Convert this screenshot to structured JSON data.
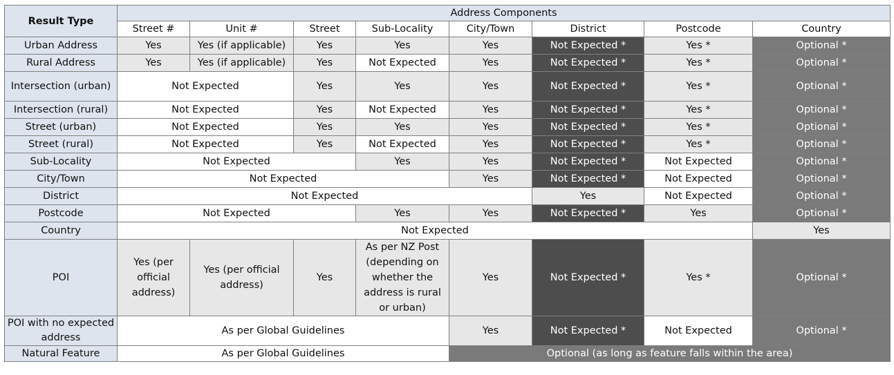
{
  "header": {
    "result_type": "Result Type",
    "group": "Address Components",
    "columns": [
      "Street #",
      "Unit #",
      "Street",
      "Sub-Locality",
      "City/Town",
      "District",
      "Postcode",
      "Country"
    ]
  },
  "rows": [
    {
      "label": "Urban Address",
      "cells": [
        "Yes",
        "Yes (if applicable)",
        "Yes",
        "Yes",
        "Yes",
        "Not Expected *",
        "Yes *",
        "Optional *"
      ]
    },
    {
      "label": "Rural Address",
      "cells": [
        "Yes",
        "Yes (if applicable)",
        "Yes",
        "Not Expected",
        "Yes",
        "Not Expected *",
        "Yes *",
        "Optional *"
      ]
    },
    {
      "label": "Intersection (urban)",
      "cells": [
        "Not Expected",
        "Yes",
        "Yes",
        "Yes",
        "Not Expected *",
        "Yes *",
        "Optional *"
      ]
    },
    {
      "label": "Intersection (rural)",
      "cells": [
        "Not Expected",
        "Yes",
        "Not Expected",
        "Yes",
        "Not Expected *",
        "Yes *",
        "Optional *"
      ]
    },
    {
      "label": "Street (urban)",
      "cells": [
        "Not Expected",
        "Yes",
        "Yes",
        "Yes",
        "Not Expected *",
        "Yes *",
        "Optional *"
      ]
    },
    {
      "label": "Street (rural)",
      "cells": [
        "Not Expected",
        "Yes",
        "Not Expected",
        "Yes",
        "Not Expected *",
        "Yes *",
        "Optional *"
      ]
    },
    {
      "label": "Sub-Locality",
      "cells": [
        "Not Expected",
        "Yes",
        "Yes",
        "Not Expected *",
        "Not Expected",
        "Optional *"
      ]
    },
    {
      "label": "City/Town",
      "cells": [
        "Not Expected",
        "Yes",
        "Not Expected *",
        "Not Expected",
        "Optional *"
      ]
    },
    {
      "label": "District",
      "cells": [
        "Not Expected",
        "Yes",
        "Not Expected",
        "Optional *"
      ]
    },
    {
      "label": "Postcode",
      "cells": [
        "Not Expected",
        "Yes",
        "Yes",
        "Not Expected *",
        "Yes",
        "Optional *"
      ]
    },
    {
      "label": "Country",
      "cells": [
        "Not Expected",
        "Yes"
      ]
    },
    {
      "label": "POI",
      "cells": [
        "Yes (per official address)",
        "Yes (per official address)",
        "Yes",
        "As per NZ Post (depending on whether the address is rural or urban)",
        "Yes",
        "Not Expected *",
        "Yes *",
        "Optional *"
      ]
    },
    {
      "label": "POI with no expected address",
      "cells": [
        "As per Global Guidelines",
        "Yes",
        "Not Expected *",
        "Not Expected",
        "Optional *"
      ]
    },
    {
      "label": "Natural Feature",
      "cells": [
        "As per Global Guidelines",
        "Optional (as long as feature falls within the area)"
      ]
    }
  ]
}
